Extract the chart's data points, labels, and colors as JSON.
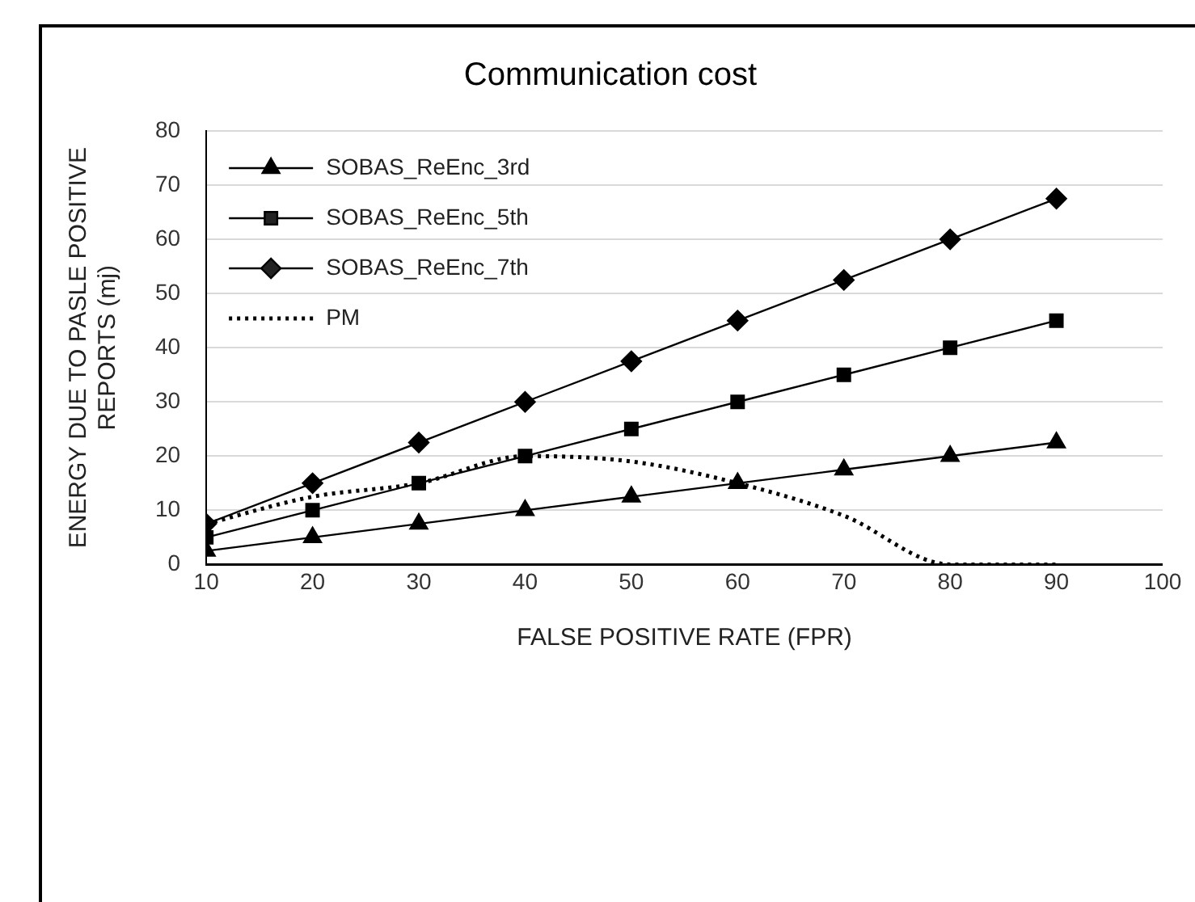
{
  "chart_data": {
    "type": "line",
    "title": "Communication cost",
    "xlabel": "FALSE POSITIVE RATE (FPR)",
    "ylabel": "ENERGY DUE TO PASLE POSITIVE REPORTS (mj)",
    "x": [
      10,
      20,
      30,
      40,
      50,
      60,
      70,
      80,
      90
    ],
    "series": [
      {
        "name": "SOBAS_ReEnc_3rd",
        "color": "#000000",
        "marker": "triangle",
        "values": [
          2.5,
          5,
          7.5,
          10,
          12.5,
          15,
          17.5,
          20,
          22.5
        ]
      },
      {
        "name": "SOBAS_ReEnc_5th",
        "color": "#000000",
        "marker": "square",
        "values": [
          5,
          10,
          15,
          20,
          25,
          30,
          35,
          40,
          45
        ]
      },
      {
        "name": "SOBAS_ReEnc_7th",
        "color": "#000000",
        "marker": "diamond",
        "values": [
          7.5,
          15,
          22.5,
          30,
          37.5,
          45,
          52.5,
          60,
          67.5
        ]
      },
      {
        "name": "PM",
        "color": "#000000",
        "marker": "none",
        "line_style": "dotted",
        "values": [
          7.5,
          12.5,
          15,
          20,
          19,
          15,
          9,
          0,
          0
        ]
      }
    ],
    "xlim": [
      10,
      100
    ],
    "xticks": [
      10,
      20,
      30,
      40,
      50,
      60,
      70,
      80,
      90,
      100
    ],
    "ylim": [
      0,
      80
    ],
    "yticks": [
      0,
      10,
      20,
      30,
      40,
      50,
      60,
      70,
      80
    ],
    "grid": "y",
    "legend": "top left"
  }
}
